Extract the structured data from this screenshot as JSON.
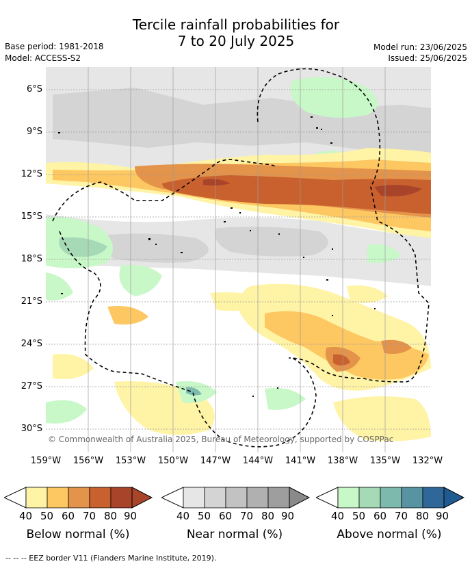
{
  "header": {
    "title_line1": "Tercile rainfall probabilities for",
    "title_line2": "7 to 20 July 2025",
    "base_period": "Base period: 1981-2018",
    "model": "Model: ACCESS-S2",
    "model_run": "Model run: 23/06/2025",
    "issued": "Issued: 25/06/2025"
  },
  "map": {
    "lat_labels": [
      "6°S",
      "9°S",
      "12°S",
      "15°S",
      "18°S",
      "21°S",
      "24°S",
      "27°S",
      "30°S"
    ],
    "lon_labels": [
      "159°W",
      "156°W",
      "153°W",
      "150°W",
      "147°W",
      "144°W",
      "141°W",
      "138°W",
      "135°W",
      "132°W"
    ],
    "copyright": "© Commonwealth of Australia 2025, Bureau of Meteorology, supported by COSPPac"
  },
  "colorbars": [
    {
      "title": "Below normal (%)",
      "ticks": [
        "40",
        "50",
        "60",
        "70",
        "80",
        "90"
      ],
      "colors": [
        "#fff3a6",
        "#fdc762",
        "#e3934a",
        "#c9612f",
        "#a8442a",
        "#a8442a"
      ]
    },
    {
      "title": "Near normal (%)",
      "ticks": [
        "40",
        "50",
        "60",
        "70",
        "80",
        "90"
      ],
      "colors": [
        "#e6e6e6",
        "#d4d4d4",
        "#c2c2c2",
        "#b0b0b0",
        "#9e9e9e",
        "#8a8a8a"
      ]
    },
    {
      "title": "Above normal (%)",
      "ticks": [
        "40",
        "50",
        "60",
        "70",
        "80",
        "90"
      ],
      "colors": [
        "#c8f7c8",
        "#a6d9b6",
        "#7eb9ae",
        "#5893a1",
        "#2f6799",
        "#1f5a91"
      ]
    }
  ],
  "footer": "--  --  -- EEZ border V11 (Flanders Marine Institute, 2019)."
}
